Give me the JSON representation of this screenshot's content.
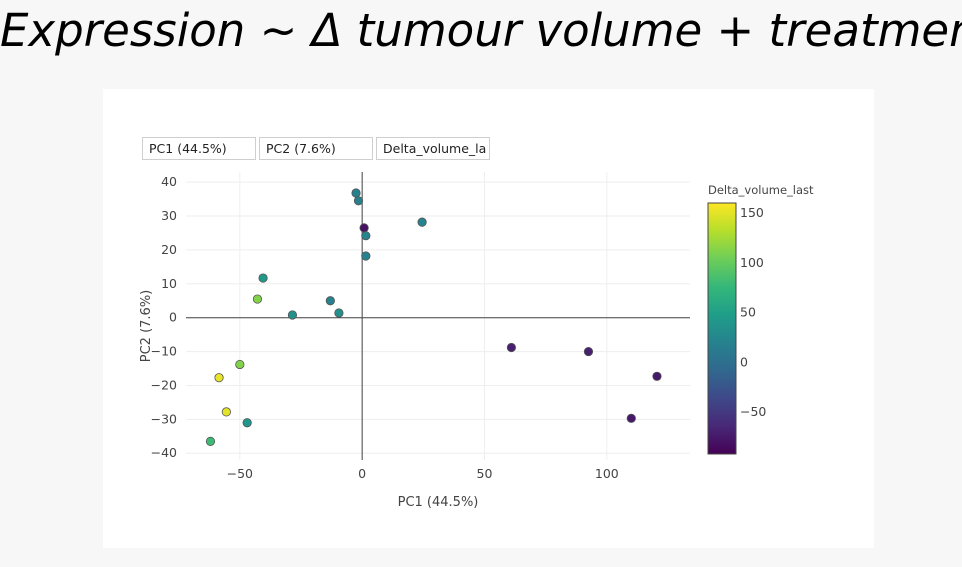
{
  "title": "Expression ~ Δ tumour volume + treatment",
  "controls": {
    "x_select": "PC1 (44.5%)",
    "y_select": "PC2 (7.6%)",
    "color_select": "Delta_volume_la"
  },
  "colors": {
    "viridis": [
      "#440154",
      "#482878",
      "#3e4989",
      "#31688e",
      "#26828e",
      "#1f9e89",
      "#35b779",
      "#6ece58",
      "#b5de2b",
      "#fde725"
    ],
    "marker_outline": "#555555",
    "zero_line": "#444444",
    "grid": "#eeeeee"
  },
  "chart_data": {
    "type": "scatter",
    "xlabel": "PC1 (44.5%)",
    "ylabel": "PC2 (7.6%)",
    "xlim": [
      -72,
      134
    ],
    "ylim": [
      -42,
      43
    ],
    "xticks": [
      -50,
      0,
      50,
      100
    ],
    "xtick_labels": [
      "−50",
      "0",
      "50",
      "100"
    ],
    "yticks": [
      -40,
      -30,
      -20,
      -10,
      0,
      10,
      20,
      30,
      40
    ],
    "ytick_labels": [
      "−40",
      "−30",
      "−20",
      "−10",
      "0",
      "10",
      "20",
      "30",
      "40"
    ],
    "grid": true,
    "colorbar": {
      "title": "Delta_volume_last",
      "range": [
        -92,
        160
      ],
      "ticks": [
        150,
        100,
        50,
        0,
        -50
      ],
      "tick_labels": [
        "150",
        "100",
        "50",
        "0",
        "−50"
      ]
    },
    "points": [
      {
        "x": -2.5,
        "y": 36.8,
        "c": 18
      },
      {
        "x": -1.5,
        "y": 34.5,
        "c": 18
      },
      {
        "x": 0.8,
        "y": 26.5,
        "c": -80
      },
      {
        "x": 1.5,
        "y": 24.2,
        "c": 22
      },
      {
        "x": 1.5,
        "y": 18.2,
        "c": 20
      },
      {
        "x": 24.5,
        "y": 28.2,
        "c": 22
      },
      {
        "x": -40.5,
        "y": 11.7,
        "c": 42
      },
      {
        "x": -42.8,
        "y": 5.5,
        "c": 112
      },
      {
        "x": -28.5,
        "y": 0.8,
        "c": 35
      },
      {
        "x": -13,
        "y": 5.0,
        "c": 20
      },
      {
        "x": -9.5,
        "y": 1.4,
        "c": 32
      },
      {
        "x": -50,
        "y": -13.8,
        "c": 112
      },
      {
        "x": -58.5,
        "y": -17.7,
        "c": 152
      },
      {
        "x": -55.5,
        "y": -27.8,
        "c": 150
      },
      {
        "x": -47,
        "y": -31.0,
        "c": 40
      },
      {
        "x": -62,
        "y": -36.5,
        "c": 80
      },
      {
        "x": 61,
        "y": -8.8,
        "c": -70
      },
      {
        "x": 92.5,
        "y": -10.0,
        "c": -70
      },
      {
        "x": 120.5,
        "y": -17.3,
        "c": -75
      },
      {
        "x": 110,
        "y": -29.7,
        "c": -75
      }
    ]
  }
}
